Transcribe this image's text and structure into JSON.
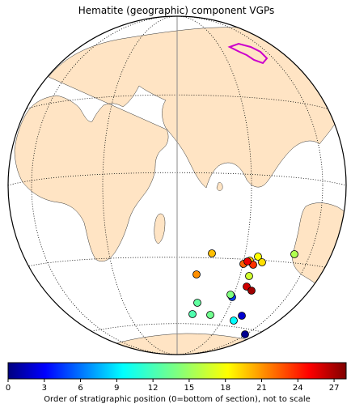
{
  "chart_data": {
    "type": "scatter",
    "title": "Hematite (geographic) component VGPs",
    "projection": "orthographic globe",
    "colorbar": {
      "label": "Order of stratigraphic position (0=bottom of section), not to scale",
      "range": [
        0,
        28
      ],
      "ticks": [
        "0",
        "3",
        "6",
        "9",
        "12",
        "15",
        "18",
        "21",
        "24",
        "27"
      ],
      "colormap": "jet"
    },
    "colors": {
      "land": "#ffe4c4",
      "ocean": "#ffffff",
      "marker_edge": "#000000",
      "polygon": "#cc00cc"
    },
    "points": [
      {
        "order": 0,
        "color": "#00008f"
      },
      {
        "order": 2,
        "color": "#0000cf"
      },
      {
        "order": 5,
        "color": "#0040ff"
      },
      {
        "order": 10,
        "color": "#00ffff"
      },
      {
        "order": 13,
        "color": "#50ffaf"
      },
      {
        "order": 14,
        "color": "#60ff9f"
      },
      {
        "order": 15,
        "color": "#70ff8f"
      },
      {
        "order": 16,
        "color": "#80ff7f"
      },
      {
        "order": 17,
        "color": "#b0ff4f"
      },
      {
        "order": 18,
        "color": "#d0ff2f"
      },
      {
        "order": 19,
        "color": "#ffff00"
      },
      {
        "order": 20,
        "color": "#ffdf00"
      },
      {
        "order": 20.5,
        "color": "#ffcf00"
      },
      {
        "order": 21,
        "color": "#ffbf00"
      },
      {
        "order": 22,
        "color": "#ff8f00"
      },
      {
        "order": 23,
        "color": "#ff6000"
      },
      {
        "order": 24,
        "color": "#ff3000"
      },
      {
        "order": 25,
        "color": "#ef0000"
      },
      {
        "order": 26,
        "color": "#cf0000"
      },
      {
        "order": 27,
        "color": "#9f0000"
      }
    ]
  }
}
